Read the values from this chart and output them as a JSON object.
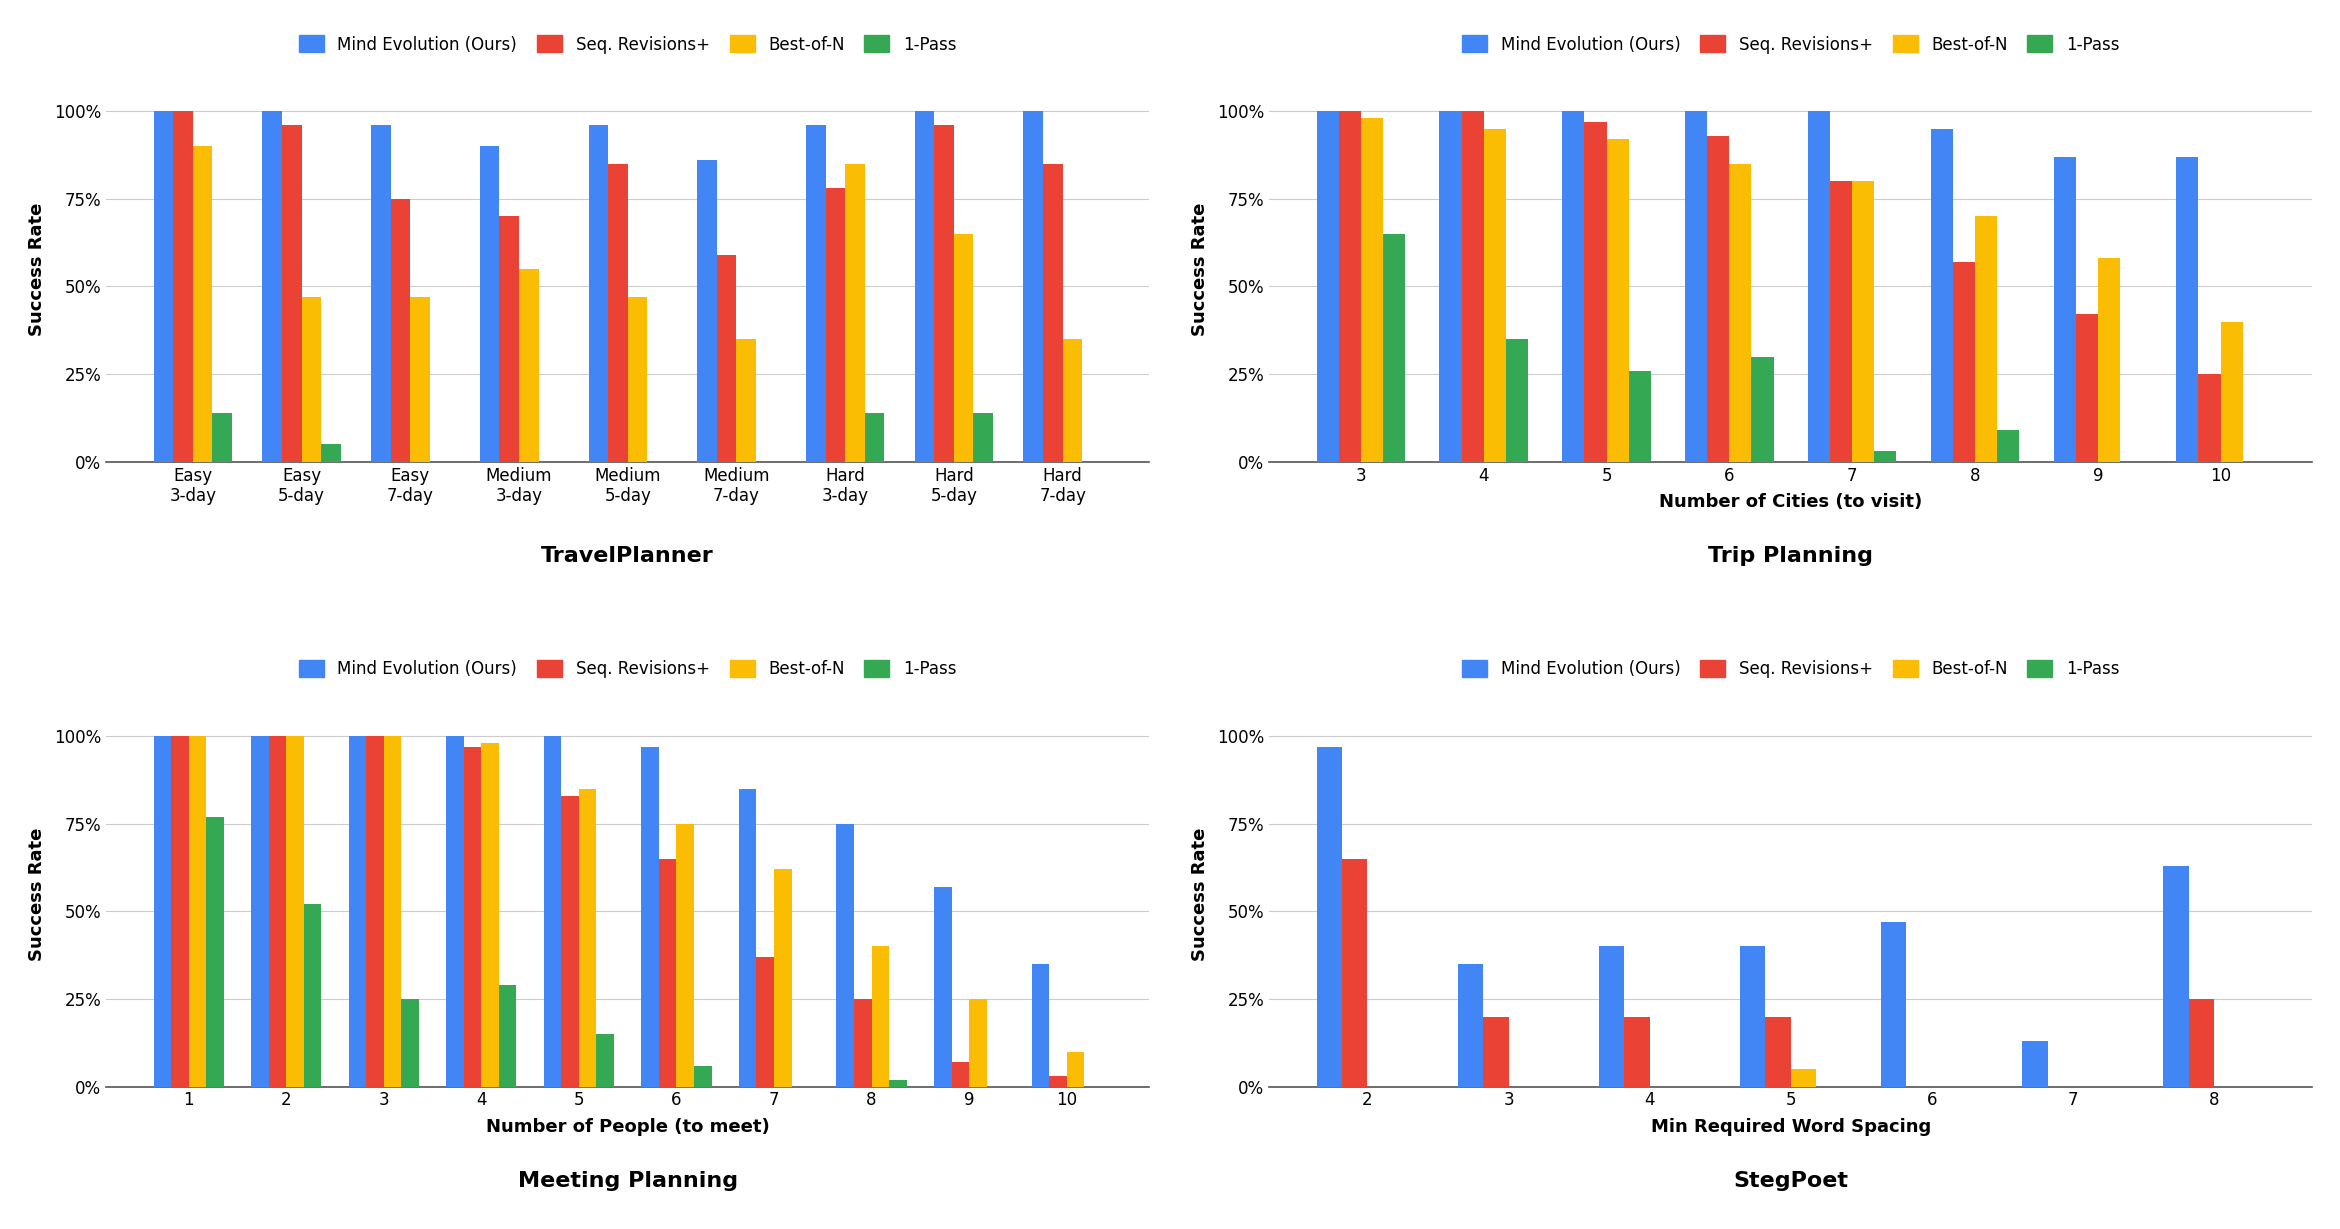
{
  "colors": {
    "mind_evolution": "#4285F4",
    "seq_revisions": "#EA4335",
    "best_of_n": "#FBBC04",
    "one_pass": "#34A853"
  },
  "legend_labels": [
    "Mind Evolution (Ours)",
    "Seq. Revisions+",
    "Best-of-N",
    "1-Pass"
  ],
  "travelplanner": {
    "title": "TravelPlanner",
    "ylabel": "Success Rate",
    "xlabel": "",
    "categories": [
      "Easy\n3-day",
      "Easy\n5-day",
      "Easy\n7-day",
      "Medium\n3-day",
      "Medium\n5-day",
      "Medium\n7-day",
      "Hard\n3-day",
      "Hard\n5-day",
      "Hard\n7-day"
    ],
    "mind_evolution": [
      100,
      100,
      96,
      90,
      96,
      86,
      96,
      100,
      100
    ],
    "seq_revisions": [
      100,
      96,
      75,
      70,
      85,
      59,
      78,
      96,
      85
    ],
    "best_of_n": [
      90,
      47,
      47,
      55,
      47,
      35,
      85,
      65,
      35
    ],
    "one_pass": [
      14,
      5,
      0,
      0,
      0,
      0,
      14,
      14,
      0
    ]
  },
  "tripplanning": {
    "title": "Trip Planning",
    "xlabel": "Number of Cities (to visit)",
    "ylabel": "Success Rate",
    "categories": [
      "3",
      "4",
      "5",
      "6",
      "7",
      "8",
      "9",
      "10"
    ],
    "mind_evolution": [
      100,
      100,
      100,
      100,
      100,
      95,
      87,
      87
    ],
    "seq_revisions": [
      100,
      100,
      97,
      93,
      80,
      57,
      42,
      25
    ],
    "best_of_n": [
      98,
      95,
      92,
      85,
      80,
      70,
      58,
      40
    ],
    "one_pass": [
      65,
      35,
      26,
      30,
      3,
      9,
      0,
      0
    ]
  },
  "meetingplanning": {
    "title": "Meeting Planning",
    "xlabel": "Number of People (to meet)",
    "ylabel": "Success Rate",
    "categories": [
      "1",
      "2",
      "3",
      "4",
      "5",
      "6",
      "7",
      "8",
      "9",
      "10"
    ],
    "mind_evolution": [
      100,
      100,
      100,
      100,
      100,
      97,
      85,
      75,
      57,
      35
    ],
    "seq_revisions": [
      100,
      100,
      100,
      97,
      83,
      65,
      37,
      25,
      7,
      3
    ],
    "best_of_n": [
      100,
      100,
      100,
      98,
      85,
      75,
      62,
      40,
      25,
      10
    ],
    "one_pass": [
      77,
      52,
      25,
      29,
      15,
      6,
      0,
      2,
      0,
      0
    ]
  },
  "stegpoet": {
    "title": "StegPoet",
    "xlabel": "Min Required Word Spacing",
    "ylabel": "Success Rate",
    "categories": [
      "2",
      "3",
      "4",
      "5",
      "6",
      "7",
      "8"
    ],
    "mind_evolution": [
      97,
      35,
      40,
      40,
      47,
      13,
      63
    ],
    "seq_revisions": [
      65,
      20,
      20,
      20,
      0,
      0,
      25
    ],
    "best_of_n": [
      0,
      0,
      0,
      5,
      0,
      0,
      0
    ],
    "one_pass": [
      0,
      0,
      0,
      0,
      0,
      0,
      0
    ]
  }
}
